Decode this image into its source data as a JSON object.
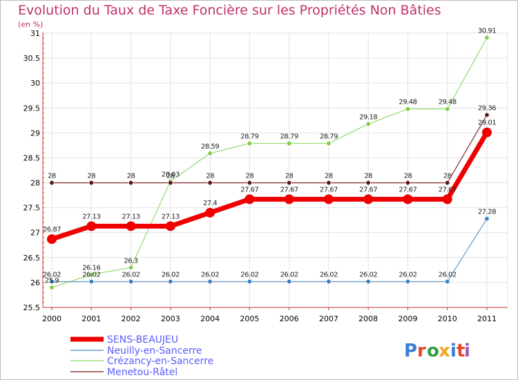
{
  "header": {
    "title": "Evolution du Taux de Taxe Foncière sur les Propriétés Non Bâties",
    "unit": "(en %)"
  },
  "logo": {
    "text": "Proxiti",
    "colors": [
      "#3a7dd8",
      "#e8462a",
      "#2e9e3e",
      "#f2a71b",
      "#3a7dd8",
      "#e8462a",
      "#9b59b6"
    ]
  },
  "chart_data": {
    "type": "line",
    "title": "Evolution du Taux de Taxe Foncière sur les Propriétés Non Bâties",
    "ylabel": "(en %)",
    "xlabel": "",
    "x": [
      "2000",
      "2001",
      "2002",
      "2003",
      "2004",
      "2005",
      "2006",
      "2007",
      "2008",
      "2009",
      "2010",
      "2011"
    ],
    "ylim": [
      25.5,
      31
    ],
    "yticks": [
      "25.5",
      "26",
      "26.5",
      "27",
      "27.5",
      "28",
      "28.5",
      "29",
      "29.5",
      "30",
      "30.5",
      "31"
    ],
    "grid": true,
    "legend_position": "bottom-left",
    "series": [
      {
        "name": "SENS-BEAUJEU",
        "color": "#ee0000",
        "values": [
          26.87,
          27.13,
          27.13,
          27.13,
          27.4,
          27.67,
          27.67,
          27.67,
          27.67,
          27.67,
          27.67,
          29.01
        ],
        "labels": [
          "26.87",
          "27.13",
          "27.13",
          "27.13",
          "27.4",
          "27.67",
          "27.67",
          "27.67",
          "27.67",
          "27.67",
          "27.67",
          "29.01"
        ]
      },
      {
        "name": "Neuilly-en-Sancerre",
        "color": "#6a9fd0",
        "values": [
          26.02,
          26.02,
          26.02,
          26.02,
          26.02,
          26.02,
          26.02,
          26.02,
          26.02,
          26.02,
          26.02,
          27.28
        ],
        "labels": [
          "26.02",
          "26.02",
          "26.02",
          "26.02",
          "26.02",
          "26.02",
          "26.02",
          "26.02",
          "26.02",
          "26.02",
          "26.02",
          "27.28"
        ]
      },
      {
        "name": "Crézancy-en-Sancerre",
        "color": "#99dd77",
        "values": [
          25.9,
          26.16,
          26.3,
          28.03,
          28.59,
          28.79,
          28.79,
          28.79,
          29.18,
          29.48,
          29.48,
          30.91
        ],
        "labels": [
          "25.9",
          "26.16",
          "26.3",
          "28.03",
          "28.59",
          "28.79",
          "28.79",
          "28.79",
          "29.18",
          "29.48",
          "29.48",
          "30.91"
        ]
      },
      {
        "name": "Menetou-Râtel",
        "color": "#8a3a3a",
        "values": [
          28,
          28,
          28,
          28,
          28,
          28,
          28,
          28,
          28,
          28,
          28,
          29.36
        ],
        "labels": [
          "28",
          "28",
          "28",
          "28",
          "28",
          "28",
          "28",
          "28",
          "28",
          "28",
          "28",
          "29.36"
        ]
      }
    ]
  }
}
